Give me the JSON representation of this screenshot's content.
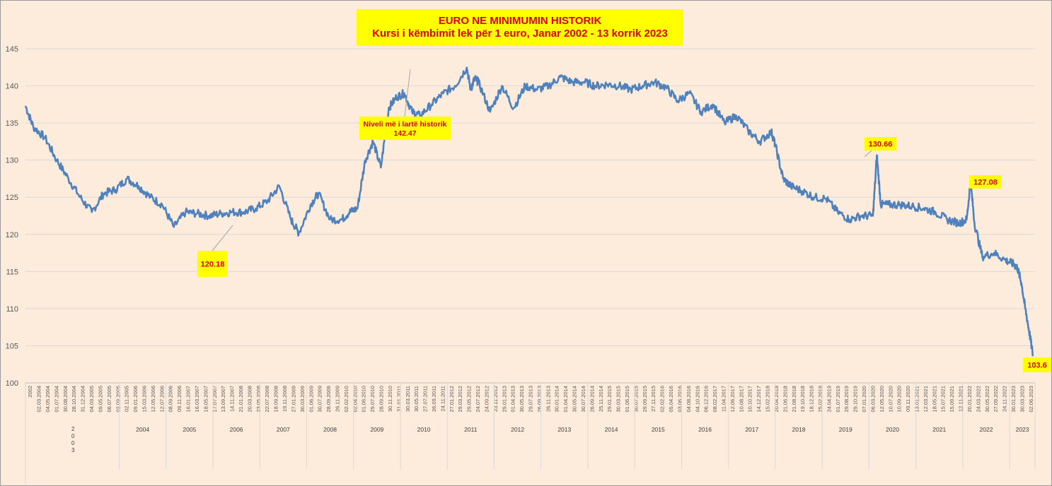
{
  "chart_data": {
    "type": "line",
    "title": "EURO NE MINIMUMIN HISTORIK",
    "subtitle": "Kursi i këmbimit lek për 1 euro, Janar 2002 - 13 korrik 2023",
    "xlabel": "",
    "ylabel": "",
    "ylim": [
      100,
      145
    ],
    "yticks": [
      100,
      105,
      110,
      115,
      120,
      125,
      130,
      135,
      140,
      145
    ],
    "grid": true,
    "line_color": "#4f81bd",
    "year_labels": [
      "2003",
      "2004",
      "2005",
      "2006",
      "2007",
      "2008",
      "2009",
      "2010",
      "2011",
      "2012",
      "2013",
      "2014",
      "2015",
      "2016",
      "2017",
      "2018",
      "2019",
      "2020",
      "2021",
      "2022",
      "2023"
    ],
    "date_labels": [
      "2002",
      "02.03.2004",
      "04.05.2004",
      "01.07.2004",
      "30.08.2004",
      "28.10.2004",
      "31.12.2004",
      "04.03.2005",
      "09.05.2005",
      "06.07.2005",
      "02.09.2005",
      "02.11.2005",
      "09.01.2006",
      "15.03.2006",
      "12.05.2006",
      "12.07.2006",
      "08.09.2006",
      "09.11.2006",
      "16.01.2007",
      "16.03.2007",
      "18.05.2007",
      "17.07.2007",
      "13.09.2007",
      "14.11.2007",
      "21.01.2008",
      "20.03.2008",
      "23.05.2008",
      "22.07.2008",
      "18.09.2008",
      "19.11.2008",
      "27.01.2009",
      "30.03.2009",
      "01.06.2009",
      "30.07.2009",
      "28.09.2009",
      "26.11.2009",
      "02.02.2010",
      "02.04.2010",
      "01.06.2010",
      "29.07.2010",
      "28.09.2010",
      "30.11.2010",
      "31.01.2011",
      "30.03.2011",
      "30.05.2011",
      "27.07.2011",
      "26.09.2011",
      "24.11.2011",
      "27.01.2012",
      "29.03.2012",
      "29.05.2012",
      "24.07.2012",
      "24.09.2012",
      "23.11.2012",
      "29.01.2013",
      "01.04.2013",
      "30.05.2013",
      "29.07.2013",
      "26.09.2013",
      "26.11.2013",
      "30.01.2014",
      "01.04.2014",
      "30.05.2014",
      "30.07.2014",
      "26.09.2014",
      "25.11.2014",
      "29.01.2015",
      "30.03.2015",
      "01.06.2015",
      "30.07.2015",
      "29.09.2015",
      "27.11.2015",
      "02.02.2016",
      "05.04.2016",
      "03.06.2016",
      "04.08.2016",
      "04.10.2016",
      "06.12.2016",
      "08.02.2017",
      "11.04.2017",
      "12.06.2017",
      "10.08.2017",
      "10.10.2017",
      "14.12.2017",
      "15.02.2018",
      "20.04.2018",
      "21.06.2018",
      "21.08.2018",
      "19.10.2018",
      "18.12.2018",
      "25.02.2019",
      "24.04.2019",
      "01.07.2019",
      "29.08.2019",
      "29.10.2019",
      "07.01.2020",
      "06.03.2020",
      "12.05.2020",
      "10.07.2020",
      "10.09.2020",
      "09.11.2020",
      "13.01.2021",
      "12.03.2021",
      "18.05.2021",
      "15.07.2021",
      "15.09.2021",
      "12.11.2021",
      "20.01.2022",
      "24.03.2022",
      "30.05.2022",
      "27.09.2022",
      "24.11.2022",
      "30.01.2023",
      "30.03.2023",
      "02.06.2023"
    ],
    "annotations": [
      {
        "label": "120.18",
        "value": 120.18
      },
      {
        "label": "Niveli më i lartë historik",
        "value_label": "142.47",
        "value": 142.47
      },
      {
        "label": "130.66",
        "value": 130.66
      },
      {
        "label": "127.08",
        "value": 127.08
      },
      {
        "label": "103.6",
        "value": 103.6
      }
    ],
    "x": [
      "2002-01",
      "2002-03",
      "2002-06",
      "2002-09",
      "2002-12",
      "2003-03",
      "2003-06",
      "2003-09",
      "2003-12",
      "2004-03",
      "2004-06",
      "2004-09",
      "2004-12",
      "2005-03",
      "2005-06",
      "2005-09",
      "2005-12",
      "2006-03",
      "2006-06",
      "2006-09",
      "2006-12",
      "2007-03",
      "2007-06",
      "2007-09",
      "2007-11",
      "2008-02",
      "2008-04",
      "2008-07",
      "2008-10",
      "2008-12",
      "2009-02",
      "2009-04",
      "2009-06",
      "2009-08",
      "2009-10",
      "2009-12",
      "2010-02",
      "2010-04",
      "2010-06",
      "2010-09",
      "2010-12",
      "2011-03",
      "2011-06",
      "2011-07",
      "2011-08",
      "2011-09",
      "2011-12",
      "2012-03",
      "2012-06",
      "2012-09",
      "2012-12",
      "2013-03",
      "2013-06",
      "2013-09",
      "2013-12",
      "2014-03",
      "2014-06",
      "2014-09",
      "2014-12",
      "2015-03",
      "2015-06",
      "2015-09",
      "2015-12",
      "2016-03",
      "2016-06",
      "2016-09",
      "2016-12",
      "2017-03",
      "2017-06",
      "2017-09",
      "2017-12",
      "2018-01",
      "2018-03",
      "2018-05",
      "2018-08",
      "2018-11",
      "2019-02",
      "2019-05",
      "2019-08",
      "2019-11",
      "2020-02",
      "2020-03",
      "2020-04",
      "2020-06",
      "2020-09",
      "2020-12",
      "2021-03",
      "2021-06",
      "2021-09",
      "2021-12",
      "2022-02",
      "2022-03",
      "2022-04",
      "2022-06",
      "2022-09",
      "2022-12",
      "2023-02",
      "2023-03",
      "2023-04",
      "2023-05",
      "2023-06",
      "2023-07"
    ],
    "values": [
      137.3,
      134.5,
      133.0,
      130.0,
      127.5,
      125.0,
      123.0,
      125.5,
      126.0,
      127.5,
      126.5,
      125.0,
      124.0,
      121.0,
      123.0,
      122.8,
      122.5,
      122.8,
      123.0,
      123.0,
      123.5,
      124.5,
      126.5,
      122.0,
      120.18,
      124.0,
      125.5,
      122.0,
      122.0,
      123.0,
      123.5,
      130.0,
      132.5,
      129.0,
      137.0,
      138.5,
      139.0,
      136.5,
      136.0,
      137.5,
      139.0,
      140.0,
      142.47,
      139.5,
      141.0,
      140.5,
      136.5,
      140.0,
      137.0,
      140.0,
      139.5,
      140.0,
      141.2,
      140.5,
      140.5,
      140.0,
      140.2,
      140.0,
      139.5,
      140.0,
      140.5,
      139.8,
      138.0,
      139.0,
      136.5,
      137.5,
      135.0,
      136.0,
      134.0,
      132.5,
      133.8,
      132.0,
      127.5,
      126.5,
      125.8,
      125.0,
      124.8,
      123.0,
      122.0,
      122.5,
      122.5,
      130.66,
      124.0,
      124.0,
      124.0,
      123.8,
      123.5,
      123.0,
      122.0,
      121.5,
      122.0,
      127.08,
      121.5,
      117.0,
      117.5,
      116.5,
      116.0,
      115.5,
      113.5,
      110.0,
      107.0,
      103.6
    ]
  }
}
